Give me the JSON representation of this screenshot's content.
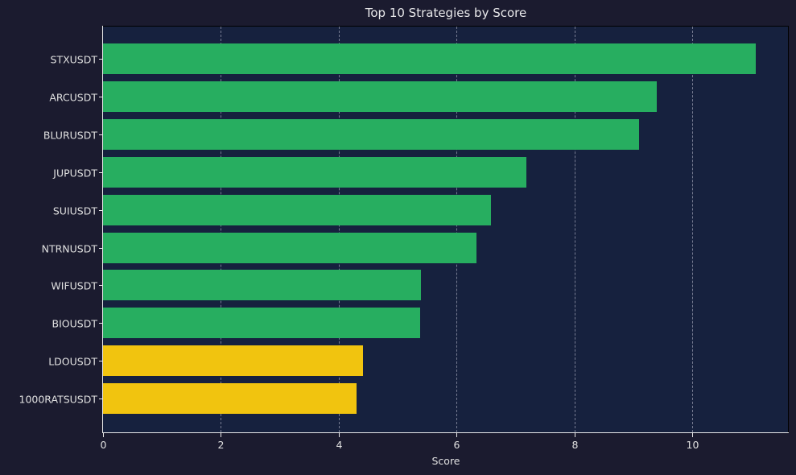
{
  "chart_data": {
    "type": "bar",
    "orientation": "horizontal",
    "title": "Top 10 Strategies by Score",
    "xlabel": "Score",
    "ylabel": "",
    "xlim": [
      0,
      11.64
    ],
    "xticks": [
      0,
      2,
      4,
      6,
      8,
      10
    ],
    "grid": {
      "axis": "x",
      "style": "dashed"
    },
    "legend": null,
    "categories": [
      "STXUSDT",
      "ARCUSDT",
      "BLURUSDT",
      "JUPUSDT",
      "SUIUSDT",
      "NTRNUSDT",
      "WIFUSDT",
      "BIOUSDT",
      "LDOUSDT",
      "1000RATSUSDT"
    ],
    "values": [
      11.08,
      9.4,
      9.1,
      7.18,
      6.59,
      6.34,
      5.4,
      5.38,
      4.41,
      4.31
    ],
    "bar_colors": [
      "#27ae60",
      "#27ae60",
      "#27ae60",
      "#27ae60",
      "#27ae60",
      "#27ae60",
      "#27ae60",
      "#27ae60",
      "#f1c40f",
      "#f1c40f"
    ]
  },
  "colors": {
    "figure_bg": "#1b1b2f",
    "plot_bg": "#16213e",
    "high_score": "#27ae60",
    "mid_score": "#f1c40f",
    "text": "#e0e0e0"
  },
  "x_tick_labels": [
    "0",
    "2",
    "4",
    "6",
    "8",
    "10"
  ]
}
